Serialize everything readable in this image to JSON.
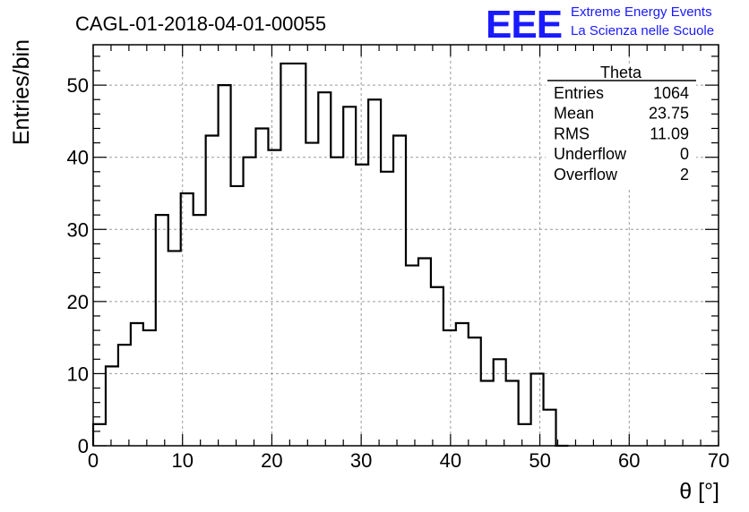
{
  "chart_data": {
    "type": "bar",
    "title": "CAGL-01-2018-04-01-00055",
    "xlabel": "θ [°]",
    "ylabel": "Entries/bin",
    "xlim": [
      0,
      70
    ],
    "ylim": [
      0,
      55.6
    ],
    "grid": true,
    "bin_width": 1.4,
    "x_ticks": [
      "0",
      "10",
      "20",
      "30",
      "40",
      "50",
      "60",
      "70"
    ],
    "x_tick_values": [
      0,
      10,
      20,
      30,
      40,
      50,
      60,
      70
    ],
    "y_ticks": [
      "0",
      "10",
      "20",
      "30",
      "40",
      "50"
    ],
    "y_tick_values": [
      0,
      10,
      20,
      30,
      40,
      50
    ],
    "values": [
      3,
      11,
      14,
      17,
      16,
      32,
      27,
      35,
      32,
      43,
      50,
      36,
      40,
      44,
      41,
      53,
      53,
      42,
      49,
      40,
      47,
      39,
      48,
      38,
      43,
      25,
      26,
      22,
      16,
      17,
      15,
      9,
      12,
      9,
      3,
      10,
      5,
      0
    ]
  },
  "stats_box": {
    "title": "Theta",
    "rows": [
      {
        "label": "Entries",
        "value": "1064"
      },
      {
        "label": "Mean",
        "value": "23.75"
      },
      {
        "label": "RMS",
        "value": "11.09"
      },
      {
        "label": "Underflow",
        "value": "0"
      },
      {
        "label": "Overflow",
        "value": "2"
      }
    ]
  },
  "logo": {
    "mark": "EEE",
    "line1": "Extreme Energy Events",
    "line2": "La Scienza nelle Scuole",
    "color": "#1a1aff"
  }
}
